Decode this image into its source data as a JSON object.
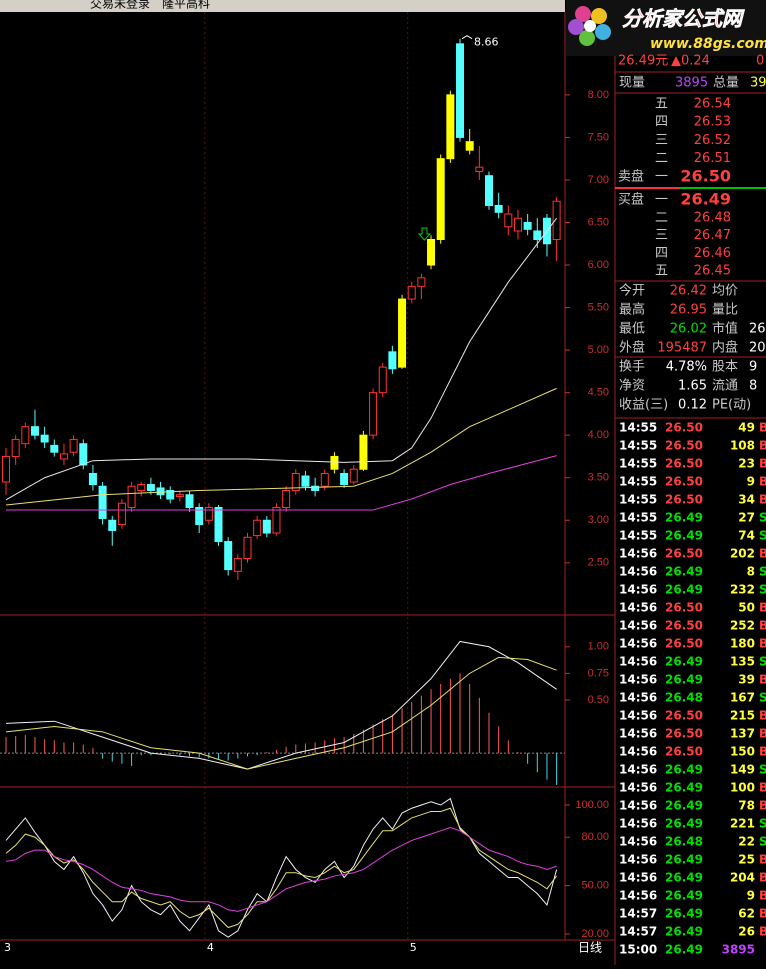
{
  "header": {
    "status": "交易未登录",
    "stock": "隆平高科"
  },
  "logo": {
    "title": "分析家公式网",
    "url": "www.88gs.com"
  },
  "chart_data": [
    {
      "type": "candlestick",
      "categories": [
        "3",
        null,
        null,
        null,
        null,
        null,
        null,
        null,
        null,
        null,
        null,
        null,
        null,
        null,
        null,
        null,
        null,
        null,
        null,
        null,
        null,
        "4",
        null,
        null,
        null,
        null,
        null,
        null,
        null,
        null,
        null,
        null,
        null,
        null,
        null,
        null,
        null,
        null,
        null,
        null,
        null,
        null,
        "5",
        null,
        null,
        null,
        null,
        null,
        null,
        null,
        null,
        null,
        null,
        null,
        null,
        null,
        null,
        null
      ],
      "open": [
        3.45,
        3.75,
        3.9,
        4.1,
        4.0,
        3.88,
        3.72,
        3.8,
        3.9,
        3.55,
        3.4,
        3.0,
        2.95,
        3.15,
        3.35,
        3.42,
        3.38,
        3.35,
        3.28,
        3.3,
        3.15,
        3.0,
        3.15,
        2.75,
        2.4,
        2.55,
        2.82,
        3.0,
        2.85,
        3.15,
        3.35,
        3.52,
        3.4,
        3.4,
        3.6,
        3.55,
        3.45,
        3.6,
        4.0,
        4.5,
        4.98,
        4.8,
        5.6,
        5.75,
        6.0,
        6.3,
        7.25,
        8.6,
        7.45,
        7.1,
        7.05,
        6.7,
        6.45,
        6.4,
        6.5,
        6.4,
        6.55,
        6.3
      ],
      "high": [
        3.85,
        4.0,
        4.15,
        4.3,
        4.1,
        3.95,
        3.9,
        4.0,
        3.95,
        3.65,
        3.45,
        3.05,
        3.25,
        3.45,
        3.45,
        3.5,
        3.45,
        3.4,
        3.35,
        3.35,
        3.2,
        3.2,
        3.18,
        2.8,
        2.6,
        2.85,
        3.05,
        3.05,
        3.2,
        3.4,
        3.6,
        3.58,
        3.5,
        3.6,
        3.8,
        3.6,
        3.65,
        4.05,
        4.55,
        4.85,
        5.05,
        5.65,
        5.8,
        5.9,
        6.35,
        7.3,
        8.05,
        8.66,
        7.6,
        7.4,
        7.1,
        6.85,
        6.7,
        6.65,
        6.6,
        6.55,
        6.6,
        6.8
      ],
      "low": [
        3.3,
        3.65,
        3.85,
        3.95,
        3.85,
        3.75,
        3.65,
        3.75,
        3.6,
        3.35,
        2.95,
        2.7,
        2.9,
        3.1,
        3.28,
        3.3,
        3.25,
        3.2,
        3.22,
        3.1,
        2.85,
        2.95,
        2.7,
        2.35,
        2.3,
        2.5,
        2.78,
        2.8,
        2.82,
        3.1,
        3.3,
        3.35,
        3.28,
        3.35,
        3.55,
        3.38,
        3.42,
        3.58,
        3.95,
        4.45,
        4.72,
        4.78,
        5.55,
        5.6,
        5.95,
        6.25,
        7.2,
        7.45,
        7.3,
        7.0,
        6.65,
        6.55,
        6.35,
        6.3,
        6.35,
        6.2,
        6.1,
        6.05
      ],
      "close": [
        3.75,
        3.95,
        4.1,
        4.0,
        3.92,
        3.8,
        3.78,
        3.95,
        3.65,
        3.42,
        3.02,
        2.88,
        3.2,
        3.4,
        3.42,
        3.35,
        3.3,
        3.25,
        3.3,
        3.15,
        2.95,
        3.15,
        2.75,
        2.42,
        2.55,
        2.8,
        3.0,
        2.85,
        3.15,
        3.35,
        3.55,
        3.4,
        3.35,
        3.55,
        3.75,
        3.42,
        3.6,
        4.0,
        4.5,
        4.8,
        4.78,
        5.6,
        5.75,
        5.85,
        6.3,
        7.25,
        8.0,
        7.5,
        7.35,
        7.15,
        6.7,
        6.62,
        6.6,
        6.55,
        6.42,
        6.3,
        6.25,
        6.75
      ],
      "colors": [
        "#ff3232",
        "#ff3232",
        "#ff3232",
        "#54ffff",
        "#54ffff",
        "#54ffff",
        "#ff3232",
        "#ff3232",
        "#54ffff",
        "#54ffff",
        "#54ffff",
        "#54ffff",
        "#ff3232",
        "#ff3232",
        "#ff3232",
        "#54ffff",
        "#54ffff",
        "#54ffff",
        "#ff3232",
        "#54ffff",
        "#54ffff",
        "#ff3232",
        "#54ffff",
        "#54ffff",
        "#ff3232",
        "#ff3232",
        "#ff3232",
        "#54ffff",
        "#ff3232",
        "#ff3232",
        "#ff3232",
        "#54ffff",
        "#54ffff",
        "#ff3232",
        "#ffff00",
        "#54ffff",
        "#ff3232",
        "#ffff00",
        "#ff3232",
        "#ff3232",
        "#54ffff",
        "#ffff00",
        "#ff3232",
        "#ff3232",
        "#ffff00",
        "#ffff00",
        "#ffff00",
        "#54ffff",
        "#ffff00",
        "#ff3232",
        "#54ffff",
        "#54ffff",
        "#ff3232",
        "#ff3232",
        "#54ffff",
        "#54ffff",
        "#54ffff",
        "#ff3232"
      ],
      "hollow_color": "#ff3232",
      "ylim": [
        1.91,
        8.88
      ],
      "yticks": [
        {
          "value": 2.5,
          "label": "2.50"
        },
        {
          "value": 3,
          "label": "3.00"
        },
        {
          "value": 3.5,
          "label": "3.50"
        },
        {
          "value": 4,
          "label": "4.00"
        },
        {
          "value": 4.5,
          "label": "4.50"
        },
        {
          "value": 5,
          "label": "5.00"
        },
        {
          "value": 5.5,
          "label": "5.50"
        },
        {
          "value": 6,
          "label": "6.00"
        },
        {
          "value": 6.5,
          "label": "6.50"
        },
        {
          "value": 7,
          "label": "7.00"
        },
        {
          "value": 7.5,
          "label": "7.50"
        },
        {
          "value": 8,
          "label": "8.00"
        }
      ],
      "lines": [
        {
          "color": "#e8e8e8",
          "x": [
            0,
            4,
            9,
            15,
            20,
            25,
            30,
            35,
            40,
            42,
            44,
            46,
            48,
            50,
            52,
            54,
            57
          ],
          "values": [
            3.24,
            3.5,
            3.7,
            3.72,
            3.72,
            3.72,
            3.7,
            3.68,
            3.7,
            3.85,
            4.2,
            4.65,
            5.1,
            5.45,
            5.8,
            6.1,
            6.55
          ]
        },
        {
          "color": "#e8e070",
          "x": [
            0,
            10,
            20,
            30,
            36,
            40,
            44,
            48,
            52,
            57
          ],
          "values": [
            3.18,
            3.3,
            3.35,
            3.38,
            3.4,
            3.55,
            3.8,
            4.1,
            4.3,
            4.55
          ]
        },
        {
          "color": "#e040e0",
          "x": [
            0,
            38,
            42,
            46,
            50,
            54,
            57
          ],
          "values": [
            3.12,
            3.12,
            3.25,
            3.42,
            3.55,
            3.67,
            3.76
          ]
        }
      ],
      "period": "日线"
    },
    {
      "type": "macd",
      "values": [
        0.15,
        0.16,
        0.17,
        0.15,
        0.13,
        0.12,
        0.1,
        0.1,
        0.08,
        0.05,
        -0.05,
        -0.08,
        -0.1,
        -0.12,
        -0.02,
        -0.02,
        -0.01,
        -0.01,
        -0.02,
        -0.03,
        -0.04,
        -0.05,
        -0.06,
        -0.07,
        -0.05,
        -0.03,
        -0.02,
        0.01,
        0.03,
        0.06,
        0.08,
        0.09,
        0.1,
        0.12,
        0.14,
        0.15,
        0.18,
        0.22,
        0.27,
        0.32,
        0.36,
        0.42,
        0.48,
        0.54,
        0.6,
        0.65,
        0.7,
        0.75,
        0.65,
        0.52,
        0.38,
        0.25,
        0.12,
        0.01,
        -0.1,
        -0.18,
        -0.25,
        -0.3
      ],
      "up_color": "#ff5a5a",
      "down_color": "#3cd8e8",
      "ylim": [
        -0.3,
        1.28
      ],
      "yticks": [
        {
          "value": 0.5,
          "label": "0.50"
        },
        {
          "value": 0.75,
          "label": "0.75"
        },
        {
          "value": 1,
          "label": "1.00"
        }
      ],
      "lines": [
        {
          "color": "#f0f0f0",
          "x": [
            0,
            5,
            10,
            15,
            20,
            25,
            30,
            35,
            40,
            44,
            47,
            50,
            53,
            57
          ],
          "values": [
            0.28,
            0.3,
            0.15,
            0.0,
            -0.05,
            -0.15,
            0.0,
            0.1,
            0.35,
            0.7,
            1.05,
            1.0,
            0.85,
            0.6
          ]
        },
        {
          "color": "#e8e070",
          "x": [
            0,
            5,
            10,
            15,
            20,
            25,
            30,
            35,
            40,
            44,
            48,
            51,
            54,
            57
          ],
          "values": [
            0.2,
            0.25,
            0.2,
            0.05,
            0.0,
            -0.15,
            -0.05,
            0.05,
            0.2,
            0.45,
            0.75,
            0.9,
            0.88,
            0.78
          ]
        }
      ]
    },
    {
      "type": "line",
      "ylim": [
        17.5,
        109.3
      ],
      "yticks": [
        {
          "value": 20,
          "label": "20.00"
        },
        {
          "value": 50,
          "label": "50.00"
        },
        {
          "value": 80,
          "label": "80.00"
        },
        {
          "value": 100,
          "label": "100.00"
        }
      ],
      "lines": [
        {
          "color": "#f0f0f0",
          "values": [
            78,
            85,
            92,
            83,
            75,
            65,
            60,
            68,
            58,
            45,
            38,
            28,
            35,
            50,
            40,
            35,
            32,
            38,
            28,
            22,
            30,
            38,
            22,
            18,
            22,
            35,
            45,
            40,
            55,
            68,
            60,
            55,
            52,
            60,
            65,
            55,
            62,
            75,
            85,
            92,
            85,
            95,
            98,
            100,
            102,
            100,
            104,
            85,
            80,
            70,
            65,
            60,
            55,
            55,
            50,
            45,
            38,
            60
          ]
        },
        {
          "color": "#e8e070",
          "values": [
            70,
            75,
            82,
            80,
            75,
            68,
            64,
            66,
            60,
            52,
            46,
            40,
            40,
            46,
            42,
            40,
            38,
            40,
            34,
            30,
            32,
            36,
            30,
            24,
            26,
            32,
            40,
            40,
            48,
            58,
            58,
            56,
            55,
            58,
            62,
            58,
            60,
            68,
            76,
            84,
            84,
            88,
            92,
            94,
            96,
            96,
            98,
            86,
            80,
            72,
            68,
            64,
            60,
            58,
            55,
            52,
            48,
            56
          ]
        },
        {
          "color": "#e040e0",
          "values": [
            65,
            66,
            70,
            72,
            72,
            68,
            66,
            65,
            63,
            60,
            56,
            52,
            49,
            48,
            47,
            45,
            44,
            43,
            41,
            40,
            40,
            40,
            38,
            35,
            34,
            36,
            38,
            40,
            44,
            48,
            50,
            52,
            53,
            54,
            56,
            57,
            58,
            60,
            64,
            68,
            72,
            75,
            78,
            80,
            82,
            84,
            86,
            84,
            80,
            76,
            72,
            70,
            68,
            65,
            63,
            62,
            60,
            62
          ]
        }
      ]
    }
  ],
  "quote": {
    "price": "26.49元",
    "change": "▲0.24",
    "pct": "0",
    "now_label": "现量",
    "now_vol": "3895",
    "total_label": "总量",
    "total_vol": "39"
  },
  "order_book": {
    "sell_title": "卖盘",
    "buy_title": "买盘",
    "sell": [
      {
        "label": "五",
        "price": "26.54"
      },
      {
        "label": "四",
        "price": "26.53"
      },
      {
        "label": "三",
        "price": "26.52"
      },
      {
        "label": "二",
        "price": "26.51"
      },
      {
        "label": "一",
        "price": "26.50"
      }
    ],
    "buy": [
      {
        "label": "一",
        "price": "26.49"
      },
      {
        "label": "二",
        "price": "26.48"
      },
      {
        "label": "三",
        "price": "26.47"
      },
      {
        "label": "四",
        "price": "26.46"
      },
      {
        "label": "五",
        "price": "26.45"
      }
    ]
  },
  "stats": [
    [
      "今开",
      "26.42",
      "均价",
      ""
    ],
    [
      "最高",
      "26.95",
      "量比",
      ""
    ],
    [
      "最低",
      "26.02",
      "市值",
      "26"
    ],
    [
      "外盘",
      "195487",
      "内盘",
      "20"
    ],
    [
      "换手",
      "4.78%",
      "股本",
      "9"
    ],
    [
      "净资",
      "1.65",
      "流通",
      "8"
    ],
    [
      "收益(三)",
      "0.12",
      "PE(动)",
      ""
    ]
  ],
  "stats_colors": [
    "#ff4040",
    "#ff4040",
    "#00e000",
    "#ff4040",
    "#ffffff",
    "#ffffff",
    "#ffffff"
  ],
  "ticks": [
    [
      "14:55",
      "26.50",
      "49",
      "B"
    ],
    [
      "14:55",
      "26.50",
      "108",
      "B"
    ],
    [
      "14:55",
      "26.50",
      "23",
      "B"
    ],
    [
      "14:55",
      "26.50",
      "9",
      "B"
    ],
    [
      "14:55",
      "26.50",
      "34",
      "B"
    ],
    [
      "14:55",
      "26.49",
      "27",
      "S"
    ],
    [
      "14:55",
      "26.49",
      "74",
      "S"
    ],
    [
      "14:56",
      "26.50",
      "202",
      "B"
    ],
    [
      "14:56",
      "26.49",
      "8",
      "S"
    ],
    [
      "14:56",
      "26.49",
      "232",
      "S"
    ],
    [
      "14:56",
      "26.50",
      "50",
      "B"
    ],
    [
      "14:56",
      "26.50",
      "252",
      "B"
    ],
    [
      "14:56",
      "26.50",
      "180",
      "B"
    ],
    [
      "14:56",
      "26.49",
      "135",
      "S"
    ],
    [
      "14:56",
      "26.49",
      "39",
      "B"
    ],
    [
      "14:56",
      "26.48",
      "167",
      "S"
    ],
    [
      "14:56",
      "26.50",
      "215",
      "B"
    ],
    [
      "14:56",
      "26.50",
      "137",
      "B"
    ],
    [
      "14:56",
      "26.50",
      "150",
      "B"
    ],
    [
      "14:56",
      "26.49",
      "149",
      "S"
    ],
    [
      "14:56",
      "26.49",
      "100",
      "B"
    ],
    [
      "14:56",
      "26.49",
      "78",
      "B"
    ],
    [
      "14:56",
      "26.49",
      "221",
      "S"
    ],
    [
      "14:56",
      "26.48",
      "22",
      "S"
    ],
    [
      "14:56",
      "26.49",
      "25",
      "B"
    ],
    [
      "14:56",
      "26.49",
      "204",
      "B"
    ],
    [
      "14:56",
      "26.49",
      "9",
      "B"
    ],
    [
      "14:57",
      "26.49",
      "62",
      "B"
    ],
    [
      "14:57",
      "26.49",
      "26",
      "B"
    ],
    [
      "15:00",
      "26.49",
      "3895",
      ""
    ]
  ],
  "side_colors": {
    "B": "#ff4040",
    "S": "#00e000"
  }
}
